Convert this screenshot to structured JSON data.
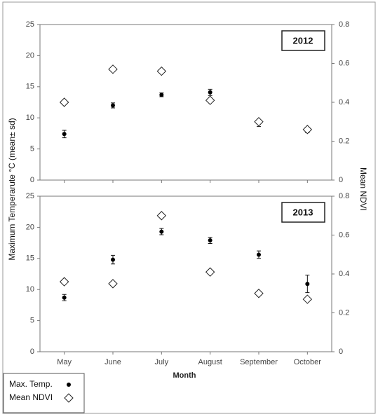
{
  "chart_data": [
    {
      "type": "scatter",
      "label": "2012",
      "y_label": "Maximum Temperarute °C (mean± sd)",
      "y2_label": "Mean NDVI",
      "ylim": [
        0,
        25
      ],
      "yticks": [
        0,
        5,
        10,
        15,
        20,
        25
      ],
      "y2lim": [
        0,
        0.8
      ],
      "y2ticks": [
        0,
        0.2,
        0.4,
        0.6,
        0.8
      ],
      "series": [
        {
          "name": "Max. Temp.",
          "color": "#000000",
          "marker": "circle",
          "values": [
            7.4,
            12.0,
            13.7,
            14.1,
            9.1,
            8.0
          ],
          "errors": [
            0.6,
            0.4,
            0.3,
            0.5,
            0.5,
            0.4
          ]
        },
        {
          "name": "Mean NDVI",
          "color": "#ffffff",
          "marker": "diamond",
          "axis": "y2",
          "values": [
            0.4,
            0.57,
            0.56,
            0.41,
            0.3,
            0.26
          ]
        }
      ]
    },
    {
      "type": "scatter",
      "label": "2013",
      "x_label": "Month",
      "categories": [
        "May",
        "June",
        "July",
        "August",
        "September",
        "October"
      ],
      "ylim": [
        0,
        25
      ],
      "yticks": [
        0,
        5,
        10,
        15,
        20,
        25
      ],
      "y2lim": [
        0,
        0.8
      ],
      "y2ticks": [
        0,
        0.2,
        0.4,
        0.6,
        0.8
      ],
      "series": [
        {
          "color": "#000000",
          "marker": "circle",
          "values": [
            8.7,
            14.8,
            19.3,
            17.9,
            15.6,
            10.9
          ],
          "errors": [
            0.5,
            0.7,
            0.5,
            0.5,
            0.6,
            1.4
          ]
        },
        {
          "color": "#ffffff",
          "marker": "diamond",
          "axis": "y2",
          "values": [
            0.36,
            0.35,
            0.7,
            0.41,
            0.3,
            0.27
          ]
        }
      ]
    }
  ]
}
